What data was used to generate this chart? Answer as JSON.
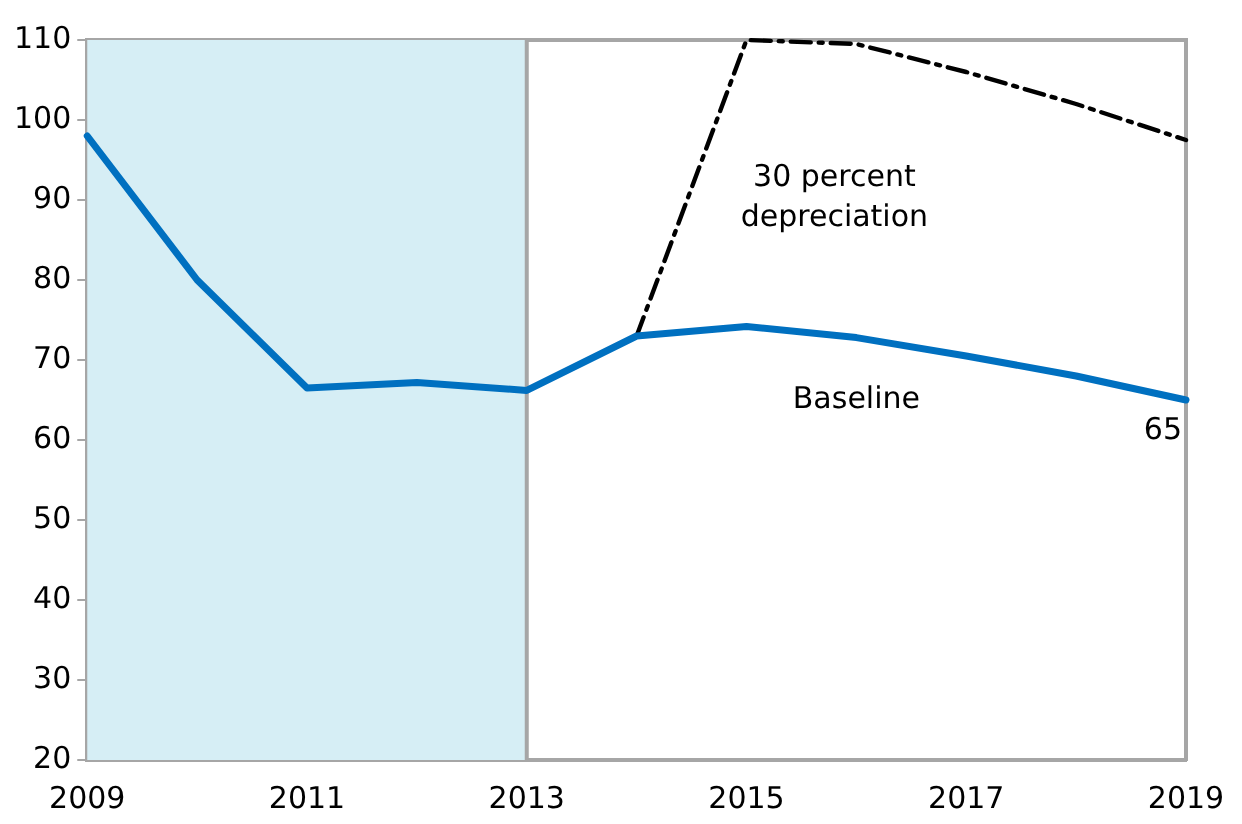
{
  "chart_data": {
    "type": "line",
    "xlim": [
      2009,
      2019
    ],
    "xticks": [
      2009,
      2011,
      2013,
      2015,
      2017,
      2019
    ],
    "ylim": [
      20,
      110
    ],
    "yticks": [
      20,
      30,
      40,
      50,
      60,
      70,
      80,
      90,
      100,
      110
    ],
    "grid": false,
    "legend": false,
    "marker": "none",
    "series": [
      {
        "name": "Baseline",
        "color": "#0070c0",
        "line_style": "solid",
        "x": [
          2009,
          2010,
          2011,
          2012,
          2013,
          2014,
          2015,
          2016,
          2017,
          2018,
          2019
        ],
        "values": [
          98,
          80,
          66.5,
          67.2,
          66.2,
          73,
          74.2,
          72.8,
          70.5,
          68,
          65
        ],
        "value_labels": [
          null,
          null,
          null,
          null,
          null,
          null,
          null,
          null,
          null,
          null,
          "65"
        ]
      },
      {
        "name": "30 percent\ndepreciation",
        "color": "#000000",
        "line_style": "dashed",
        "x": [
          2014,
          2015,
          2016,
          2017,
          2018,
          2019
        ],
        "values": [
          73,
          110,
          109.5,
          106,
          102,
          97.5
        ]
      }
    ],
    "bands": [
      {
        "axis": "x",
        "from": 2009,
        "to": 2013,
        "color": "#d6eef5"
      }
    ],
    "ref_lines": [
      {
        "axis": "x",
        "value": 2013,
        "color": "#a6a6a6"
      }
    ]
  }
}
